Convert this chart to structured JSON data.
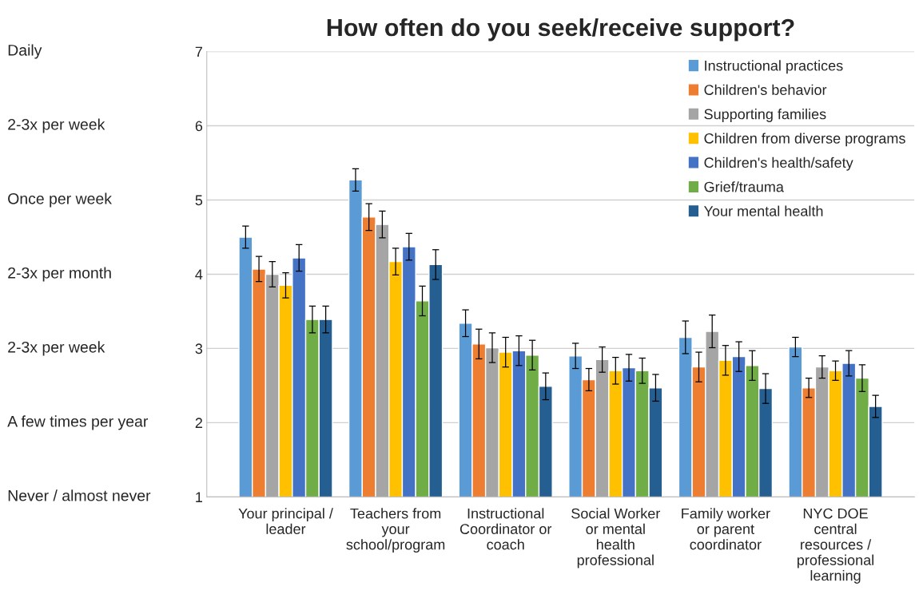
{
  "chart_data": {
    "type": "bar",
    "title": "How often do you seek/receive support?",
    "categories": [
      "Your principal /\nleader",
      "Teachers from\nyour\nschool/program",
      "Instructional\nCoordinator or\ncoach",
      "Social Worker\nor mental\nhealth\nprofessional",
      "Family worker\nor parent\ncoordinator",
      "NYC DOE\ncentral\nresources /\nprofessional\nlearning"
    ],
    "series": [
      {
        "name": "Instructional practices",
        "color": "#5b9bd5",
        "values": [
          4.5,
          5.27,
          3.34,
          2.9,
          3.15,
          3.02
        ],
        "errors": [
          0.15,
          0.15,
          0.18,
          0.17,
          0.22,
          0.13
        ]
      },
      {
        "name": "Children's behavior",
        "color": "#ed7d31",
        "values": [
          4.07,
          4.77,
          3.06,
          2.58,
          2.75,
          2.47
        ],
        "errors": [
          0.17,
          0.18,
          0.2,
          0.15,
          0.2,
          0.13
        ]
      },
      {
        "name": "Supporting families",
        "color": "#a5a5a5",
        "values": [
          4.0,
          4.67,
          3.01,
          2.85,
          3.23,
          2.75
        ],
        "errors": [
          0.17,
          0.18,
          0.2,
          0.17,
          0.22,
          0.15
        ]
      },
      {
        "name": "Children from diverse programs",
        "color": "#ffc000",
        "values": [
          3.85,
          4.17,
          2.95,
          2.7,
          2.84,
          2.7
        ],
        "errors": [
          0.17,
          0.18,
          0.2,
          0.18,
          0.2,
          0.13
        ]
      },
      {
        "name": "Children's health/safety",
        "color": "#4472c4",
        "values": [
          4.22,
          4.37,
          2.97,
          2.74,
          2.89,
          2.8
        ],
        "errors": [
          0.18,
          0.18,
          0.2,
          0.18,
          0.2,
          0.17
        ]
      },
      {
        "name": "Grief/trauma",
        "color": "#70ad47",
        "values": [
          3.39,
          3.64,
          2.91,
          2.7,
          2.77,
          2.6
        ],
        "errors": [
          0.18,
          0.2,
          0.2,
          0.17,
          0.2,
          0.18
        ]
      },
      {
        "name": "Your mental health",
        "color": "#255e91",
        "values": [
          3.39,
          4.13,
          2.49,
          2.47,
          2.46,
          2.22
        ],
        "errors": [
          0.18,
          0.2,
          0.18,
          0.18,
          0.2,
          0.15
        ]
      }
    ],
    "ylim": [
      1,
      7
    ],
    "yticks": [
      1,
      2,
      3,
      4,
      5,
      6,
      7
    ],
    "grid": "y",
    "legend": "top right",
    "annotations": [
      "Daily",
      "2-3x per week",
      "Once per week",
      "2-3x per month",
      "2-3x per week",
      "A few times per year",
      "Never / almost never"
    ]
  }
}
